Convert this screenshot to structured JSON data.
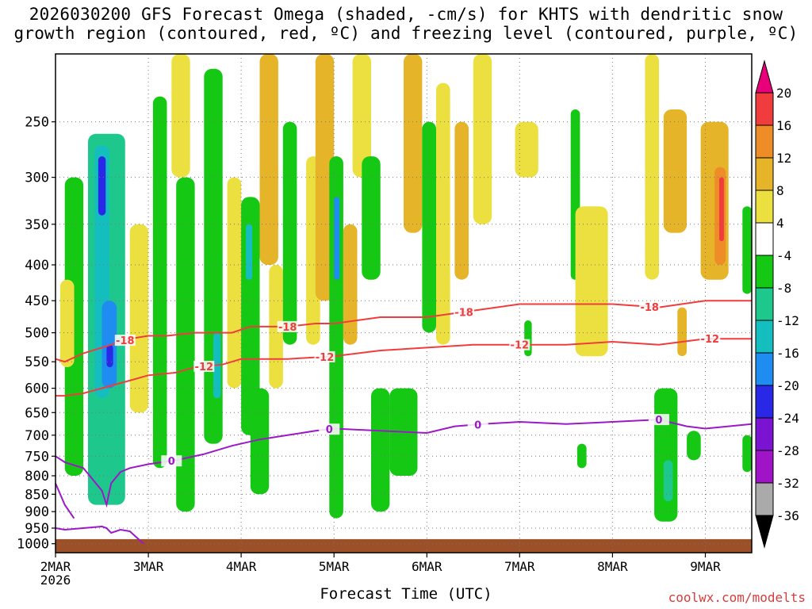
{
  "title_line1": "2026030200 GFS Forecast Omega (shaded, -cm/s) for KHTS with dendritic snow",
  "title_line2": "growth region (contoured, red, ºC) and freezing level (contoured, purple, ºC)",
  "credit": "coolwx.com/modelts",
  "chart_data": {
    "type": "heatmap",
    "xlabel": "Forecast Time (UTC)",
    "x_ticks": [
      "2MAR",
      "3MAR",
      "4MAR",
      "5MAR",
      "6MAR",
      "7MAR",
      "8MAR",
      "9MAR"
    ],
    "x_year_label": "2026",
    "x_range_days": [
      2.0,
      9.5
    ],
    "y_ticks_hpa": [
      250,
      300,
      350,
      400,
      450,
      500,
      550,
      600,
      650,
      700,
      750,
      800,
      850,
      900,
      950,
      1000
    ],
    "y_range_hpa": [
      200,
      1030
    ],
    "y_scale": "log",
    "grid": true,
    "colorbar": {
      "levels": [
        20,
        16,
        12,
        8,
        4,
        -4,
        -8,
        -12,
        -16,
        -20,
        -24,
        -28,
        -32,
        -36
      ],
      "labels": [
        "20",
        "16",
        "12",
        "8",
        "4",
        "-4",
        "-8",
        "-12",
        "-16",
        "-20",
        "-24",
        "-28",
        "-32",
        "-36"
      ],
      "colors": [
        "#e8007a",
        "#f03c3c",
        "#ee8c28",
        "#e6b428",
        "#ece041",
        "#ffffff",
        "#14c814",
        "#1ec88c",
        "#14bebe",
        "#1e8cf0",
        "#2828e6",
        "#7a14d2",
        "#a014c8",
        "#aaaaaa",
        "#000000"
      ]
    },
    "omega_cells": [
      {
        "t": [
          2.1,
          2.3
        ],
        "p": [
          300,
          800
        ],
        "v": -8
      },
      {
        "t": [
          2.35,
          2.75
        ],
        "p": [
          260,
          880
        ],
        "v": -10
      },
      {
        "t": [
          2.42,
          2.58
        ],
        "p": [
          270,
          620
        ],
        "v": -16
      },
      {
        "t": [
          2.46,
          2.54
        ],
        "p": [
          280,
          340
        ],
        "v": -24
      },
      {
        "t": [
          2.5,
          2.66
        ],
        "p": [
          450,
          600
        ],
        "v": -20
      },
      {
        "t": [
          2.55,
          2.62
        ],
        "p": [
          520,
          560
        ],
        "v": -24
      },
      {
        "t": [
          2.05,
          2.2
        ],
        "p": [
          420,
          560
        ],
        "v": 6
      },
      {
        "t": [
          2.8,
          3.0
        ],
        "p": [
          350,
          650
        ],
        "v": 5
      },
      {
        "t": [
          3.05,
          3.2
        ],
        "p": [
          230,
          780
        ],
        "v": -6
      },
      {
        "t": [
          3.25,
          3.45
        ],
        "p": [
          200,
          300
        ],
        "v": 6
      },
      {
        "t": [
          3.3,
          3.5
        ],
        "p": [
          300,
          900
        ],
        "v": -6
      },
      {
        "t": [
          3.6,
          3.8
        ],
        "p": [
          210,
          720
        ],
        "v": -6
      },
      {
        "t": [
          3.7,
          3.78
        ],
        "p": [
          500,
          620
        ],
        "v": -14
      },
      {
        "t": [
          3.85,
          4.0
        ],
        "p": [
          300,
          600
        ],
        "v": 5
      },
      {
        "t": [
          4.0,
          4.2
        ],
        "p": [
          320,
          700
        ],
        "v": -8
      },
      {
        "t": [
          4.05,
          4.12
        ],
        "p": [
          350,
          420
        ],
        "v": -14
      },
      {
        "t": [
          4.1,
          4.3
        ],
        "p": [
          600,
          850
        ],
        "v": -6
      },
      {
        "t": [
          4.2,
          4.4
        ],
        "p": [
          200,
          400
        ],
        "v": 8
      },
      {
        "t": [
          4.3,
          4.45
        ],
        "p": [
          400,
          600
        ],
        "v": 5
      },
      {
        "t": [
          4.45,
          4.6
        ],
        "p": [
          250,
          520
        ],
        "v": -6
      },
      {
        "t": [
          4.7,
          4.85
        ],
        "p": [
          280,
          520
        ],
        "v": 6
      },
      {
        "t": [
          4.8,
          5.0
        ],
        "p": [
          200,
          450
        ],
        "v": 8
      },
      {
        "t": [
          4.95,
          5.1
        ],
        "p": [
          280,
          920
        ],
        "v": -8
      },
      {
        "t": [
          5.0,
          5.06
        ],
        "p": [
          320,
          420
        ],
        "v": -18
      },
      {
        "t": [
          5.1,
          5.25
        ],
        "p": [
          350,
          520
        ],
        "v": 8
      },
      {
        "t": [
          5.2,
          5.4
        ],
        "p": [
          200,
          300
        ],
        "v": 6
      },
      {
        "t": [
          5.3,
          5.5
        ],
        "p": [
          280,
          420
        ],
        "v": -6
      },
      {
        "t": [
          5.4,
          5.6
        ],
        "p": [
          600,
          900
        ],
        "v": -6
      },
      {
        "t": [
          5.6,
          5.9
        ],
        "p": [
          600,
          800
        ],
        "v": -8
      },
      {
        "t": [
          5.75,
          5.95
        ],
        "p": [
          200,
          360
        ],
        "v": 8
      },
      {
        "t": [
          5.95,
          6.1
        ],
        "p": [
          250,
          500
        ],
        "v": -6
      },
      {
        "t": [
          6.1,
          6.25
        ],
        "p": [
          220,
          520
        ],
        "v": 6
      },
      {
        "t": [
          6.3,
          6.45
        ],
        "p": [
          250,
          420
        ],
        "v": 8
      },
      {
        "t": [
          6.5,
          6.7
        ],
        "p": [
          200,
          350
        ],
        "v": 5
      },
      {
        "t": [
          6.95,
          7.2
        ],
        "p": [
          250,
          300
        ],
        "v": 5
      },
      {
        "t": [
          7.05,
          7.13
        ],
        "p": [
          480,
          540
        ],
        "v": -6
      },
      {
        "t": [
          7.55,
          7.65
        ],
        "p": [
          240,
          420
        ],
        "v": -6
      },
      {
        "t": [
          7.6,
          7.95
        ],
        "p": [
          330,
          540
        ],
        "v": 5
      },
      {
        "t": [
          7.62,
          7.72
        ],
        "p": [
          720,
          780
        ],
        "v": -6
      },
      {
        "t": [
          8.35,
          8.5
        ],
        "p": [
          200,
          420
        ],
        "v": 6
      },
      {
        "t": [
          8.45,
          8.7
        ],
        "p": [
          600,
          930
        ],
        "v": -8
      },
      {
        "t": [
          8.55,
          8.65
        ],
        "p": [
          760,
          870
        ],
        "v": -12
      },
      {
        "t": [
          8.55,
          8.8
        ],
        "p": [
          240,
          360
        ],
        "v": 8
      },
      {
        "t": [
          8.7,
          8.8
        ],
        "p": [
          460,
          540
        ],
        "v": 8
      },
      {
        "t": [
          8.8,
          8.95
        ],
        "p": [
          690,
          760
        ],
        "v": -6
      },
      {
        "t": [
          8.95,
          9.25
        ],
        "p": [
          250,
          420
        ],
        "v": 10
      },
      {
        "t": [
          9.1,
          9.22
        ],
        "p": [
          290,
          400
        ],
        "v": 14
      },
      {
        "t": [
          9.15,
          9.2
        ],
        "p": [
          300,
          370
        ],
        "v": 18
      },
      {
        "t": [
          9.4,
          9.5
        ],
        "p": [
          330,
          440
        ],
        "v": -6
      },
      {
        "t": [
          9.4,
          9.5
        ],
        "p": [
          700,
          790
        ],
        "v": -6
      }
    ],
    "contours": [
      {
        "name": "-18",
        "color": "#f03c3c",
        "label": "-18",
        "t": [
          2.0,
          2.1,
          2.3,
          2.5,
          2.8,
          3.0,
          3.2,
          3.5,
          3.7,
          3.9,
          4.1,
          4.3,
          4.5,
          4.8,
          5.0,
          5.5,
          6.0,
          6.5,
          7.0,
          7.5,
          8.0,
          8.5,
          9.0,
          9.5
        ],
        "p": [
          545,
          550,
          535,
          525,
          510,
          505,
          505,
          500,
          500,
          500,
          490,
          490,
          490,
          485,
          485,
          475,
          475,
          465,
          455,
          455,
          455,
          460,
          450,
          450
        ],
        "label_t": [
          2.75,
          4.5,
          6.4,
          8.4
        ]
      },
      {
        "name": "-12",
        "color": "#f03c3c",
        "label": "-12",
        "t": [
          2.0,
          2.1,
          2.3,
          2.5,
          2.8,
          3.0,
          3.3,
          3.5,
          3.8,
          4.0,
          4.2,
          4.5,
          5.0,
          5.5,
          6.0,
          6.5,
          7.0,
          7.5,
          8.0,
          8.5,
          9.0,
          9.5
        ],
        "p": [
          615,
          615,
          610,
          600,
          585,
          575,
          570,
          560,
          555,
          545,
          545,
          545,
          540,
          530,
          525,
          520,
          520,
          520,
          515,
          520,
          510,
          510
        ],
        "label_t": [
          3.6,
          4.9,
          7.0,
          9.05
        ]
      },
      {
        "name": "0",
        "color": "#9b19c6",
        "label": "0",
        "t": [
          2.0,
          2.1,
          2.3,
          2.5,
          2.55,
          2.6,
          2.7,
          2.8,
          3.0,
          3.3,
          3.6,
          3.9,
          4.2,
          4.5,
          4.8,
          5.0,
          5.5,
          6.0,
          6.3,
          6.6,
          7.0,
          7.5,
          8.0,
          8.5,
          8.8,
          9.0,
          9.5
        ],
        "p": [
          750,
          765,
          780,
          840,
          880,
          820,
          790,
          780,
          770,
          760,
          745,
          725,
          710,
          700,
          690,
          685,
          690,
          695,
          680,
          675,
          670,
          675,
          670,
          665,
          680,
          685,
          675
        ],
        "label_t": [
          3.25,
          4.95,
          6.55,
          8.5
        ]
      },
      {
        "name": "0-sfc",
        "color": "#9b19c6",
        "label": "",
        "t": [
          2.0,
          2.1,
          2.3,
          2.5,
          2.55,
          2.6,
          2.7,
          2.8,
          2.95
        ],
        "p": [
          950,
          955,
          950,
          945,
          950,
          965,
          955,
          960,
          1000
        ]
      },
      {
        "name": "0-low",
        "color": "#9b19c6",
        "label": "",
        "t": [
          2.0,
          2.1,
          2.2
        ],
        "p": [
          820,
          880,
          920
        ]
      }
    ],
    "terrain_hpa": 985
  }
}
